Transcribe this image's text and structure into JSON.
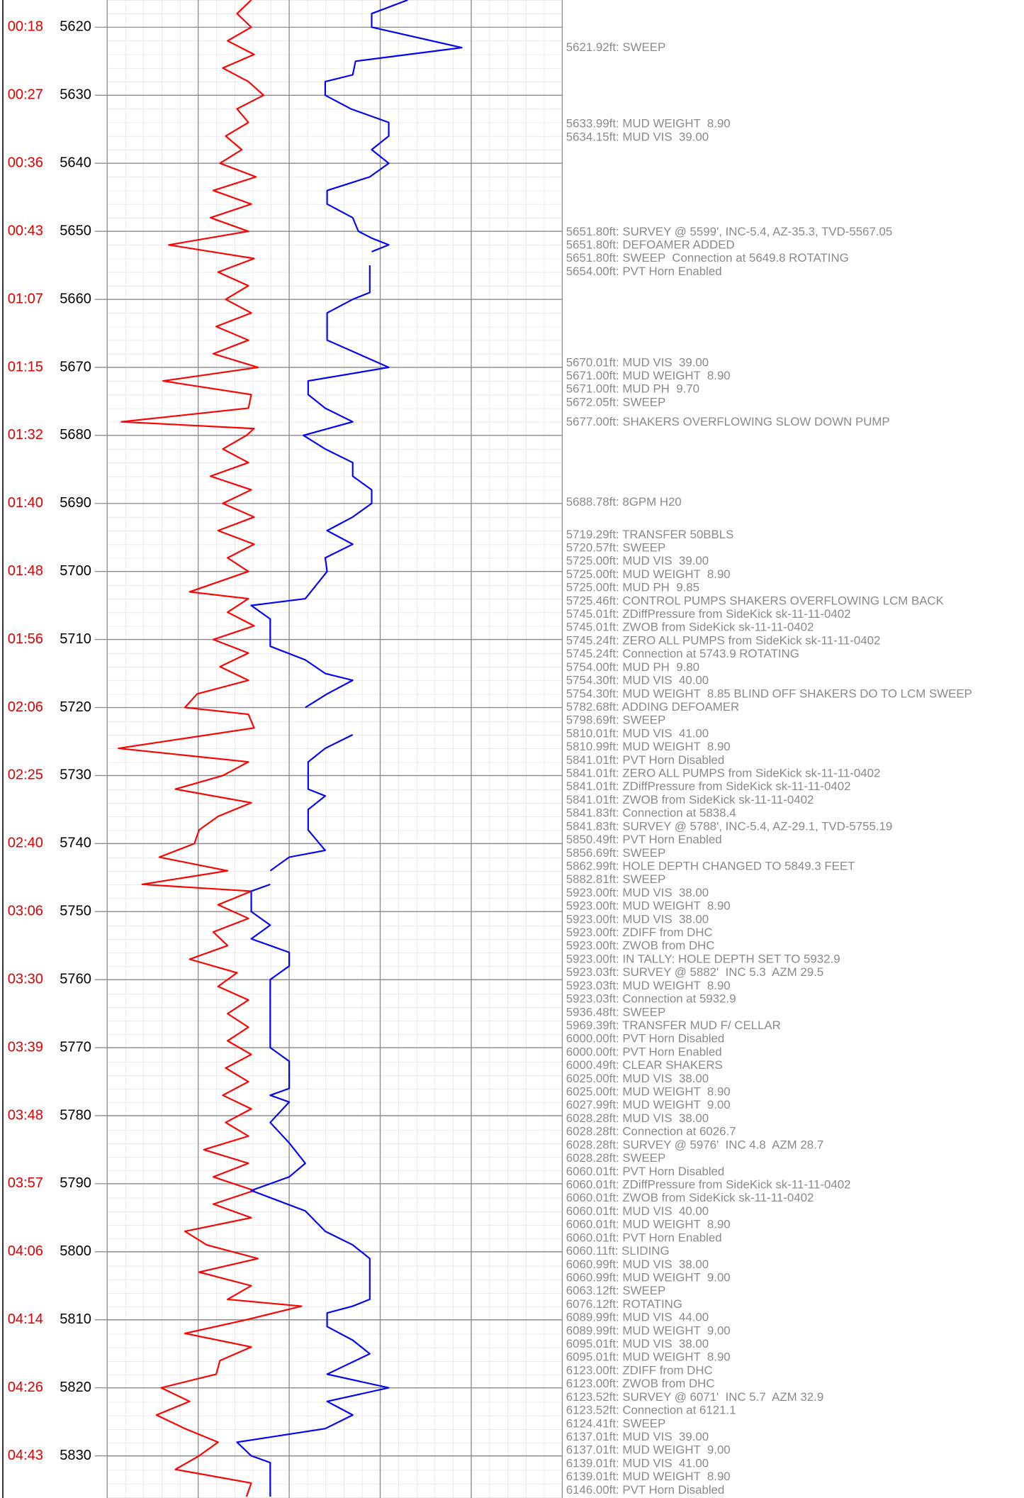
{
  "chart_data": {
    "type": "line",
    "orientation": "vertical",
    "ylim": [
      5616,
      5836.2
    ],
    "yticks": [
      5620,
      5630,
      5640,
      5650,
      5660,
      5670,
      5680,
      5690,
      5700,
      5710,
      5720,
      5730,
      5740,
      5750,
      5760,
      5770,
      5780,
      5790,
      5800,
      5810,
      5820,
      5830
    ],
    "time_labels": [
      "00:18",
      "00:27",
      "00:36",
      "00:43",
      "01:07",
      "01:15",
      "01:32",
      "01:40",
      "01:48",
      "01:56",
      "02:06",
      "02:25",
      "02:40",
      "03:06",
      "03:30",
      "03:39",
      "03:48",
      "03:57",
      "04:06",
      "04:14",
      "04:26",
      "04:43"
    ],
    "xlim": [
      0,
      480
    ],
    "xticks": [
      0,
      96,
      192,
      288,
      384,
      480
    ],
    "grid": true,
    "series": [
      {
        "color": "#ff0000",
        "depth": [
          5616,
          5618,
          5620,
          5622,
          5624,
          5626,
          5628,
          5630,
          5632,
          5634,
          5636,
          5638,
          5640,
          5642,
          5644,
          5646,
          5648,
          5650,
          5652,
          5654,
          5656,
          5658,
          5660,
          5662,
          5664,
          5666,
          5668,
          5670,
          5672,
          5674,
          5676,
          5678,
          5679,
          5680,
          5682,
          5684,
          5686,
          5688,
          5690,
          5692,
          5694,
          5696,
          5698,
          5700,
          5703,
          5704,
          5706,
          5708,
          5710,
          5712,
          5714,
          5716,
          5718,
          5720,
          5721,
          5723,
          5726,
          5728,
          5730,
          5732,
          5734,
          5736,
          5738,
          5740,
          5742,
          5744,
          5746,
          5747,
          5749,
          5751,
          5753,
          5755,
          5757,
          5759,
          5761,
          5763,
          5765,
          5767,
          5769,
          5771,
          5773,
          5775,
          5777,
          5779,
          5781,
          5783,
          5785,
          5787,
          5789,
          5791,
          5793,
          5795,
          5797,
          5799,
          5801,
          5803,
          5805,
          5807,
          5808,
          5810,
          5812,
          5814,
          5816,
          5818,
          5820,
          5822,
          5824,
          5826,
          5828,
          5830,
          5832,
          5834,
          5836
        ],
        "values": [
          152,
          137,
          152,
          127,
          155,
          122,
          149,
          165,
          137,
          149,
          125,
          142,
          119,
          157,
          112,
          152,
          109,
          149,
          65,
          155,
          117,
          149,
          125,
          152,
          115,
          149,
          112,
          159,
          59,
          152,
          149,
          15,
          155,
          147,
          122,
          149,
          109,
          152,
          122,
          155,
          117,
          155,
          127,
          149,
          87,
          149,
          127,
          155,
          112,
          149,
          119,
          149,
          95,
          82,
          149,
          155,
          12,
          149,
          122,
          72,
          152,
          117,
          97,
          92,
          55,
          127,
          37,
          152,
          117,
          149,
          112,
          127,
          87,
          137,
          117,
          149,
          127,
          149,
          127,
          152,
          125,
          149,
          122,
          152,
          125,
          149,
          102,
          149,
          112,
          155,
          112,
          152,
          82,
          105,
          159,
          97,
          152,
          127,
          205,
          147,
          82,
          152,
          119,
          115,
          57,
          87,
          52,
          82,
          117,
          97,
          72,
          152,
          147
        ]
      },
      {
        "color": "#0000ff",
        "depth": [
          5616,
          5618,
          5620,
          5623,
          5625,
          5627,
          5628,
          5630,
          5632,
          5634,
          5636,
          5638,
          5640,
          5642,
          5644,
          5646,
          5648,
          5650,
          5651,
          5652,
          5653,
          5654,
          5655,
          5659,
          5660,
          5662,
          5666,
          5670,
          5672,
          5674,
          5676,
          5678,
          5680,
          5682,
          5684,
          5686,
          5688,
          5690,
          5692,
          5694,
          5696,
          5698,
          5700,
          5704,
          5705,
          5707,
          5711,
          5713,
          5715,
          5716,
          5718,
          5720,
          5722,
          5724,
          5726,
          5728,
          5732,
          5733,
          5735,
          5738,
          5741,
          5742,
          5744,
          5745,
          5746,
          5747,
          5750,
          5752,
          5754,
          5756,
          5758,
          5760,
          5770,
          5772,
          5776,
          5777,
          5778,
          5781,
          5784,
          5787,
          5789,
          5791,
          5794,
          5797,
          5799,
          5801,
          5807,
          5808,
          5809,
          5811,
          5813,
          5815,
          5818,
          5820,
          5822,
          5824,
          5826,
          5828,
          5830,
          5831,
          5836
        ],
        "values": [
          317,
          279,
          279,
          374,
          262,
          259,
          230,
          230,
          257,
          297,
          297,
          279,
          297,
          277,
          232,
          232,
          259,
          265,
          279,
          297,
          279,
          null,
          277,
          277,
          259,
          232,
          232,
          297,
          212,
          212,
          230,
          259,
          207,
          230,
          259,
          259,
          279,
          279,
          259,
          232,
          259,
          230,
          232,
          209,
          152,
          172,
          172,
          209,
          230,
          259,
          232,
          209,
          null,
          259,
          230,
          212,
          212,
          230,
          212,
          212,
          230,
          192,
          172,
          null,
          172,
          152,
          152,
          172,
          152,
          192,
          192,
          172,
          172,
          192,
          192,
          172,
          192,
          172,
          192,
          209,
          192,
          152,
          209,
          230,
          259,
          277,
          277,
          259,
          232,
          232,
          259,
          277,
          232,
          297,
          232,
          259,
          230,
          137,
          152,
          172,
          172
        ]
      }
    ],
    "annotations": [
      "5621.92ft: SWEEP",
      "5633.99ft: MUD WEIGHT  8.90",
      "5634.15ft: MUD VIS  39.00",
      "5651.80ft: SURVEY @ 5599', INC-5.4, AZ-35.3, TVD-5567.05",
      "5651.80ft: DEFOAMER ADDED",
      "5651.80ft: SWEEP  Connection at 5649.8 ROTATING",
      "5654.00ft: PVT Horn Enabled",
      "5670.01ft: MUD VIS  39.00",
      "5671.00ft: MUD WEIGHT  8.90",
      "5671.00ft: MUD PH  9.70",
      "5672.05ft: SWEEP",
      "5677.00ft: SHAKERS OVERFLOWING SLOW DOWN PUMP",
      "5688.78ft: 8GPM H20",
      "5719.29ft: TRANSFER 50BBLS",
      "5720.57ft: SWEEP",
      "5725.00ft: MUD VIS  39.00",
      "5725.00ft: MUD WEIGHT  8.90",
      "5725.00ft: MUD PH  9.85",
      "5725.46ft: CONTROL PUMPS SHAKERS OVERFLOWING LCM BACK",
      "5745.01ft: ZDiffPressure from SideKick sk-11-11-0402",
      "5745.01ft: ZWOB from SideKick sk-11-11-0402",
      "5745.24ft: ZERO ALL PUMPS from SideKick sk-11-11-0402",
      "5745.24ft: Connection at 5743.9 ROTATING",
      "5754.00ft: MUD PH  9.80",
      "5754.30ft: MUD VIS  40.00",
      "5754.30ft: MUD WEIGHT  8.85 BLIND OFF SHAKERS DO TO LCM SWEEP",
      "5782.68ft: ADDING DEFOAMER",
      "5798.69ft: SWEEP",
      "5810.01ft: MUD VIS  41.00",
      "5810.99ft: MUD WEIGHT  8.90",
      "5841.01ft: PVT Horn Disabled",
      "5841.01ft: ZERO ALL PUMPS from SideKick sk-11-11-0402",
      "5841.01ft: ZDiffPressure from SideKick sk-11-11-0402",
      "5841.01ft: ZWOB from SideKick sk-11-11-0402",
      "5841.83ft: Connection at 5838.4",
      "5841.83ft: SURVEY @ 5788', INC-5.4, AZ-29.1, TVD-5755.19",
      "5850.49ft: PVT Horn Enabled",
      "5856.69ft: SWEEP",
      "5862.99ft: HOLE DEPTH CHANGED TO 5849.3 FEET",
      "5882.81ft: SWEEP",
      "5923.00ft: MUD VIS  38.00",
      "5923.00ft: MUD WEIGHT  8.90",
      "5923.00ft: MUD VIS  38.00",
      "5923.00ft: ZDIFF from DHC",
      "5923.00ft: ZWOB from DHC",
      "5923.00ft: IN TALLY: HOLE DEPTH SET TO 5932.9",
      "5923.03ft: SURVEY @ 5882'  INC 5.3  AZM 29.5",
      "5923.03ft: MUD WEIGHT  8.90",
      "5923.03ft: Connection at 5932.9",
      "5936.48ft: SWEEP",
      "5969.39ft: TRANSFER MUD F/ CELLAR",
      "6000.00ft: PVT Horn Disabled",
      "6000.00ft: PVT Horn Enabled",
      "6000.49ft: CLEAR SHAKERS",
      "6025.00ft: MUD VIS  38.00",
      "6025.00ft: MUD WEIGHT  8.90",
      "6027.99ft: MUD WEIGHT  9.00",
      "6028.28ft: MUD VIS  38.00",
      "6028.28ft: Connection at 6026.7",
      "6028.28ft: SURVEY @ 5976'  INC 4.8  AZM 28.7",
      "6028.28ft: SWEEP",
      "6060.01ft: PVT Horn Disabled",
      "6060.01ft: ZDiffPressure from SideKick sk-11-11-0402",
      "6060.01ft: ZWOB from SideKick sk-11-11-0402",
      "6060.01ft: MUD VIS  40.00",
      "6060.01ft: MUD WEIGHT  8.90",
      "6060.01ft: PVT Horn Enabled",
      "6060.11ft: SLIDING",
      "6060.99ft: MUD VIS  38.00",
      "6060.99ft: MUD WEIGHT  9.00",
      "6063.12ft: SWEEP",
      "6076.12ft: ROTATING",
      "6089.99ft: MUD VIS  44.00",
      "6089.99ft: MUD WEIGHT  9.00",
      "6095.01ft: MUD VIS  38.00",
      "6095.01ft: MUD WEIGHT  8.90",
      "6123.00ft: ZDIFF from DHC",
      "6123.00ft: ZWOB from DHC",
      "6123.52ft: SURVEY @ 6071'  INC 5.7  AZM 32.9",
      "6123.52ft: Connection at 6121.1",
      "6124.41ft: SWEEP",
      "6137.01ft: MUD VIS  39.00",
      "6137.01ft: MUD WEIGHT  9.00",
      "6139.01ft: MUD VIS  41.00",
      "6139.01ft: MUD WEIGHT  8.90",
      "6146.00ft: PVT Horn Disabled"
    ]
  }
}
